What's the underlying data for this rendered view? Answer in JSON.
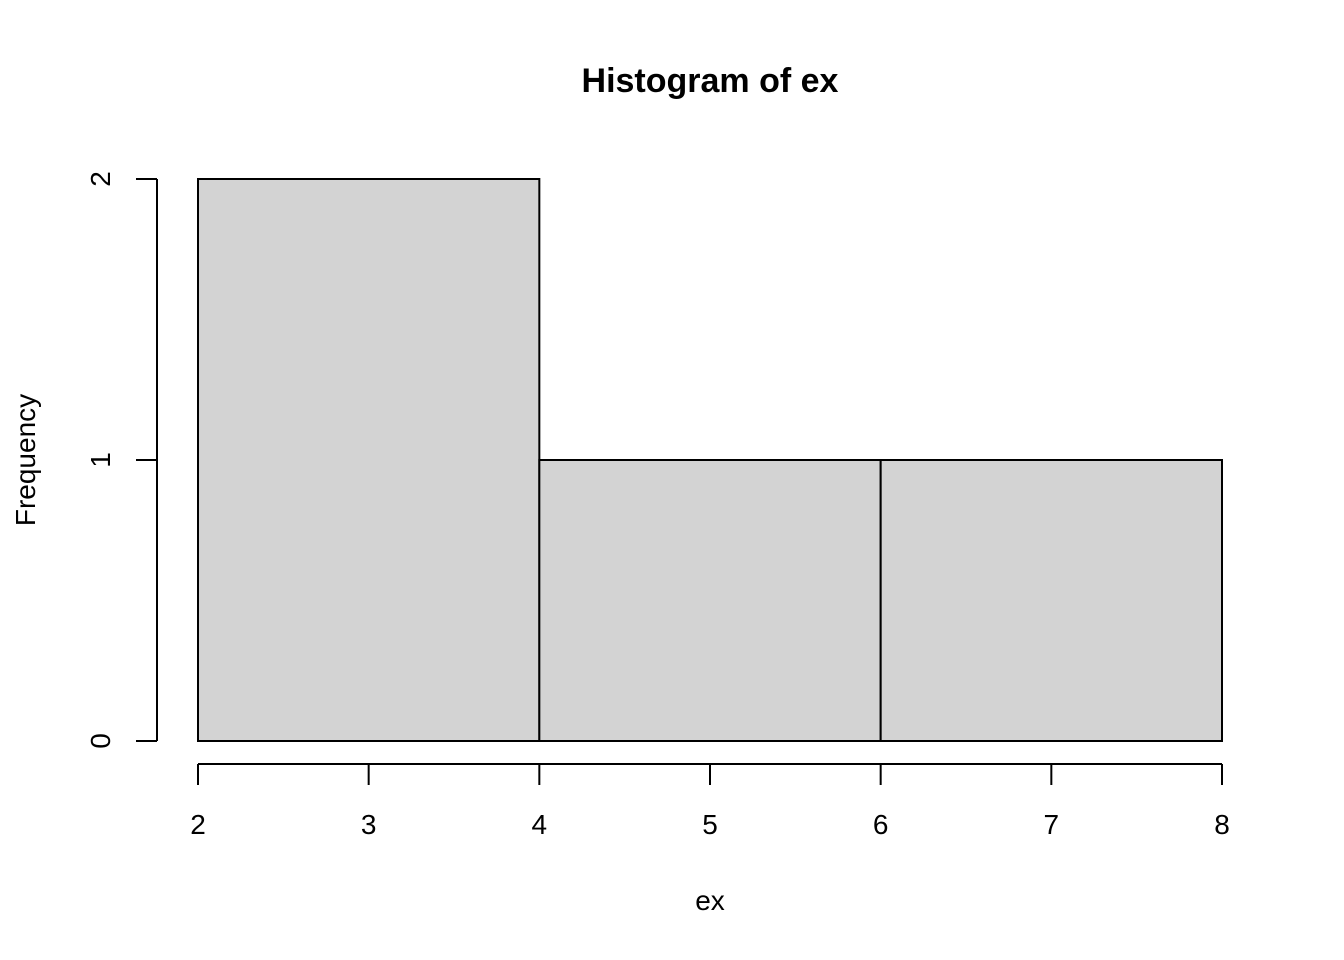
{
  "chart_data": {
    "type": "bar",
    "title": "Histogram of ex",
    "xlabel": "ex",
    "ylabel": "Frequency",
    "bins": [
      {
        "from": 2,
        "to": 4,
        "count": 2
      },
      {
        "from": 4,
        "to": 6,
        "count": 1
      },
      {
        "from": 6,
        "to": 8,
        "count": 1
      }
    ],
    "xlim": [
      2,
      8
    ],
    "ylim": [
      0,
      2
    ],
    "x_ticks": [
      "2",
      "3",
      "4",
      "5",
      "6",
      "7",
      "8"
    ],
    "y_ticks": [
      "0",
      "1",
      "2"
    ],
    "grid": false,
    "bar_color": "#d3d3d3",
    "border_color": "#000000"
  }
}
